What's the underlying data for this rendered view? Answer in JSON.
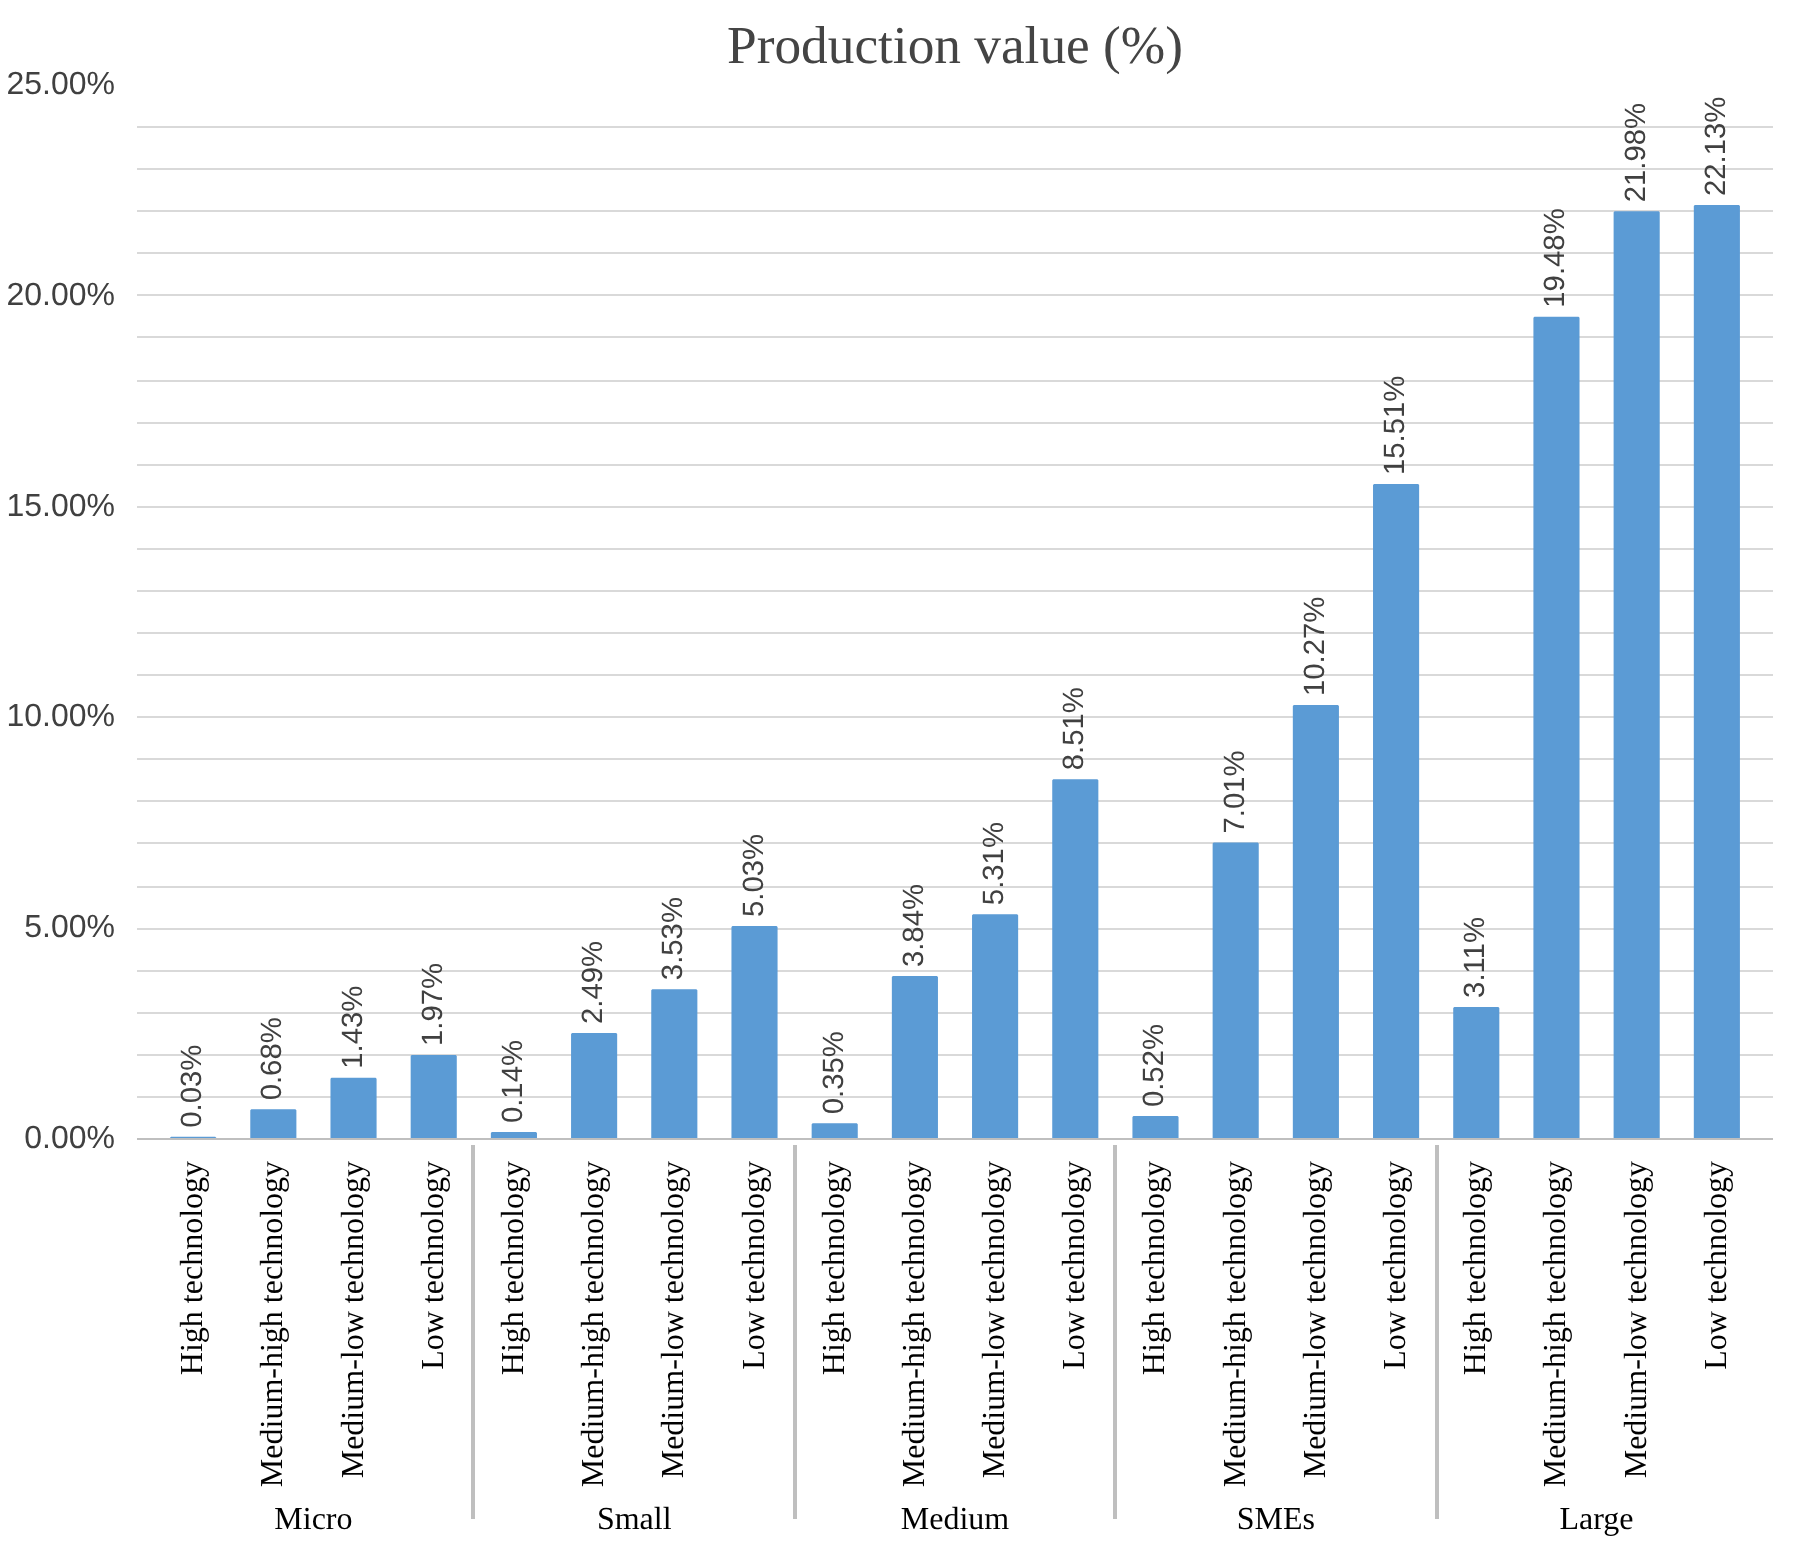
{
  "chart_data": {
    "type": "bar",
    "title": "Production value (%)",
    "categories": [
      "High technology",
      "Medium-high technology",
      "Medium-low technology",
      "Low technology",
      "High technology",
      "Medium-high technology",
      "Medium-low technology",
      "Low technology",
      "High technology",
      "Medium-high technology",
      "Medium-low technology",
      "Low technology",
      "High technology",
      "Medium-high technology",
      "Medium-low technology",
      "Low technology",
      "High technology",
      "Medium-high technology",
      "Medium-low technology",
      "Low technology"
    ],
    "annotations": [
      "Micro",
      "Small",
      "Medium",
      "SMEs",
      "Large"
    ],
    "values": [
      0.03,
      0.68,
      1.43,
      1.97,
      0.14,
      2.49,
      3.53,
      5.03,
      0.35,
      3.84,
      5.31,
      8.51,
      0.52,
      7.01,
      10.27,
      15.51,
      3.11,
      19.48,
      21.98,
      22.13
    ],
    "value_labels": [
      "0.03%",
      "0.68%",
      "1.43%",
      "1.97%",
      "0.14%",
      "2.49%",
      "3.53%",
      "5.03%",
      "0.35%",
      "3.84%",
      "5.31%",
      "8.51%",
      "0.52%",
      "7.01%",
      "10.27%",
      "15.51%",
      "3.11%",
      "19.48%",
      "21.98%",
      "22.13%"
    ],
    "color": "#5b9bd5",
    "ylim": [
      0,
      25
    ],
    "yticks": [
      {
        "value": 0,
        "label": "0.00%"
      },
      {
        "value": 1,
        "label": null
      },
      {
        "value": 2,
        "label": null
      },
      {
        "value": 3,
        "label": null
      },
      {
        "value": 4,
        "label": null
      },
      {
        "value": 5,
        "label": "5.00%"
      },
      {
        "value": 6,
        "label": null
      },
      {
        "value": 7,
        "label": null
      },
      {
        "value": 8,
        "label": null
      },
      {
        "value": 9,
        "label": null
      },
      {
        "value": 10,
        "label": "10.00%"
      },
      {
        "value": 11,
        "label": null
      },
      {
        "value": 12,
        "label": null
      },
      {
        "value": 13,
        "label": null
      },
      {
        "value": 14,
        "label": null
      },
      {
        "value": 15,
        "label": "15.00%"
      },
      {
        "value": 16,
        "label": null
      },
      {
        "value": 17,
        "label": null
      },
      {
        "value": 18,
        "label": null
      },
      {
        "value": 19,
        "label": null
      },
      {
        "value": 20,
        "label": "20.00%"
      },
      {
        "value": 21,
        "label": null
      },
      {
        "value": 22,
        "label": null
      },
      {
        "value": 23,
        "label": null
      },
      {
        "value": 24,
        "label": null
      },
      {
        "value": 25,
        "label": "25.00%"
      }
    ],
    "grid": "y"
  }
}
